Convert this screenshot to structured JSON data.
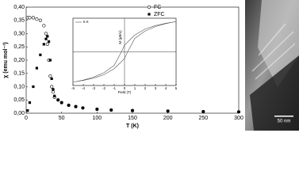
{
  "chart_data": [
    {
      "type": "scatter",
      "xlabel": "T (K)",
      "ylabel": "χ (emu mol⁻¹)",
      "xlim": [
        0,
        300
      ],
      "xticks": [
        0,
        50,
        100,
        150,
        200,
        250,
        300
      ],
      "ylim": [
        0,
        0.4
      ],
      "yticks": [
        {
          "value": 0,
          "label": "0,00"
        },
        {
          "value": 0.05,
          "label": "0,05"
        },
        {
          "value": 0.1,
          "label": "0,10"
        },
        {
          "value": 0.15,
          "label": "0,15"
        },
        {
          "value": 0.2,
          "label": "0,20"
        },
        {
          "value": 0.25,
          "label": "0,25"
        },
        {
          "value": 0.3,
          "label": "0,30"
        },
        {
          "value": 0.35,
          "label": "0,35"
        },
        {
          "value": 0.4,
          "label": "0,40"
        }
      ],
      "x": [
        2,
        5,
        10,
        15,
        20,
        25,
        28,
        30,
        32,
        34,
        36,
        38,
        40,
        45,
        50,
        60,
        70,
        80,
        100,
        120,
        150,
        200,
        250,
        300
      ],
      "series": [
        {
          "name": "FC",
          "color": "#000000",
          "marker": "circle-open",
          "values": [
            0.36,
            0.36,
            0.36,
            0.355,
            0.35,
            0.33,
            0.3,
            0.26,
            0.2,
            0.14,
            0.1,
            0.08,
            0.06,
            0.05,
            0.04,
            0.03,
            0.025,
            0.02,
            0.015,
            0.012,
            0.01,
            0.008,
            0.006,
            0.005
          ]
        },
        {
          "name": "ZFC",
          "color": "#000000",
          "marker": "square",
          "values": [
            0.01,
            0.04,
            0.1,
            0.17,
            0.22,
            0.26,
            0.28,
            0.29,
            0.27,
            0.2,
            0.13,
            0.09,
            0.065,
            0.05,
            0.04,
            0.03,
            0.025,
            0.02,
            0.015,
            0.012,
            0.01,
            0.008,
            0.006,
            0.005
          ]
        }
      ]
    },
    {
      "type": "line",
      "xlabel": "Field (T)",
      "ylabel": "M (μB/u)",
      "xlim": [
        -5,
        5
      ],
      "xticks": [
        -5,
        -4,
        -3,
        -2,
        -1,
        0,
        1,
        2,
        3,
        4,
        5
      ],
      "ylim": [
        -1,
        1
      ],
      "x": [
        5,
        4,
        3,
        2,
        1,
        0.5,
        0,
        -0.3,
        -1,
        -2,
        -3,
        -4,
        -5,
        -4,
        -3,
        -2,
        -1,
        -0.5,
        0,
        0.3,
        1,
        2,
        3,
        4,
        5
      ],
      "series": [
        {
          "name": "5 K",
          "color": "#555555",
          "values": [
            0.9,
            0.85,
            0.78,
            0.68,
            0.5,
            0.35,
            0.2,
            0,
            -0.4,
            -0.62,
            -0.75,
            -0.84,
            -0.9,
            -0.85,
            -0.78,
            -0.68,
            -0.5,
            -0.35,
            -0.2,
            0,
            0.4,
            0.62,
            0.75,
            0.84,
            0.9
          ]
        }
      ]
    }
  ],
  "image": {
    "scale_bar": "50 nm"
  }
}
